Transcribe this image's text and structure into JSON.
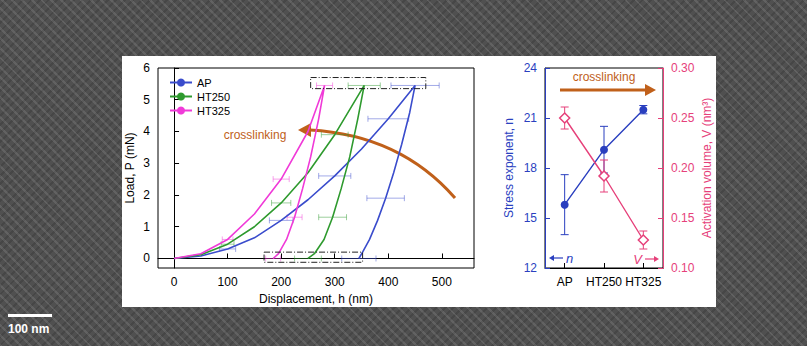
{
  "scale_bar_label": "100 nm",
  "chart_data": [
    {
      "type": "line",
      "x_label": "Displacement, h (nm)",
      "y_label": "Load, P (mN)",
      "annotations": [
        "crosslinking"
      ],
      "legend": "upper left",
      "xlim": [
        -30,
        560
      ],
      "xticks": [
        0,
        100,
        200,
        300,
        400,
        500
      ],
      "ylim": [
        -0.3,
        6
      ],
      "yticks": [
        0,
        1,
        2,
        3,
        4,
        5,
        6
      ],
      "series": [
        {
          "name": "AP",
          "color": "#3a4ccc",
          "line_style": "solid",
          "x": [
            0,
            50,
            100,
            150,
            200,
            250,
            300,
            350,
            400,
            450,
            440,
            425,
            410,
            395,
            380,
            365,
            352,
            345
          ],
          "values": [
            0,
            0.08,
            0.3,
            0.65,
            1.2,
            1.85,
            2.6,
            3.45,
            4.4,
            5.45,
            4.6,
            3.6,
            2.7,
            1.9,
            1.2,
            0.6,
            0.2,
            0
          ],
          "x_err": [
            null,
            null,
            15,
            null,
            22,
            null,
            30,
            null,
            38,
            45,
            null,
            null,
            null,
            35,
            null,
            null,
            null,
            32
          ]
        },
        {
          "name": "HT250",
          "color": "#2e9a2e",
          "line_style": "solid",
          "x": [
            0,
            50,
            100,
            150,
            200,
            250,
            300,
            355,
            343,
            328,
            312,
            296,
            280,
            262,
            250
          ],
          "values": [
            0,
            0.12,
            0.45,
            1.0,
            1.75,
            2.7,
            3.9,
            5.45,
            4.4,
            3.2,
            2.2,
            1.3,
            0.6,
            0.15,
            0
          ],
          "x_err": [
            null,
            null,
            12,
            null,
            18,
            null,
            25,
            30,
            null,
            null,
            null,
            26,
            null,
            null,
            25
          ]
        },
        {
          "name": "HT325",
          "color": "#f03ad8",
          "line_style": "solid",
          "x": [
            0,
            50,
            100,
            150,
            200,
            250,
            281,
            270,
            255,
            240,
            225,
            210,
            195,
            185
          ],
          "values": [
            0,
            0.15,
            0.6,
            1.4,
            2.5,
            4.0,
            5.45,
            4.4,
            3.2,
            2.2,
            1.3,
            0.6,
            0.15,
            0
          ],
          "x_err": [
            null,
            null,
            10,
            null,
            15,
            null,
            15,
            null,
            null,
            null,
            14,
            null,
            null,
            14
          ]
        }
      ],
      "regions": [
        {
          "xlim": [
            255,
            470
          ],
          "ylim": [
            5.35,
            5.7
          ]
        },
        {
          "xlim": [
            168,
            352
          ],
          "ylim": [
            -0.12,
            0.2
          ]
        }
      ]
    },
    {
      "type": "line",
      "categories": [
        "AP",
        "HT250",
        "HT325"
      ],
      "y_label": "Stress exponent, n",
      "y2_label": "Activation volume, V (nm³)",
      "annotations": [
        "crosslinking"
      ],
      "ylim": [
        12,
        24
      ],
      "yticks": [
        12,
        15,
        18,
        21,
        24
      ],
      "y2lim": [
        0.1,
        0.3
      ],
      "y2ticks": [
        {
          "value": 0.1,
          "label": "0.10"
        },
        {
          "value": 0.15,
          "label": "0.15"
        },
        {
          "value": 0.2,
          "label": "0.20"
        },
        {
          "value": 0.25,
          "label": "0.25"
        },
        {
          "value": 0.3,
          "label": "0.30"
        }
      ],
      "series": [
        {
          "name": "n",
          "color": "#2a3fbf",
          "marker": "circle",
          "values": [
            15.8,
            19.1,
            21.5
          ],
          "errors": [
            1.8,
            1.4,
            0.25
          ]
        },
        {
          "name": "V",
          "axis": "y2",
          "color": "#e6407a",
          "marker": "diamond-open",
          "values": [
            0.25,
            0.192,
            0.128
          ],
          "errors": [
            0.011,
            0.016,
            0.009
          ]
        }
      ]
    }
  ]
}
